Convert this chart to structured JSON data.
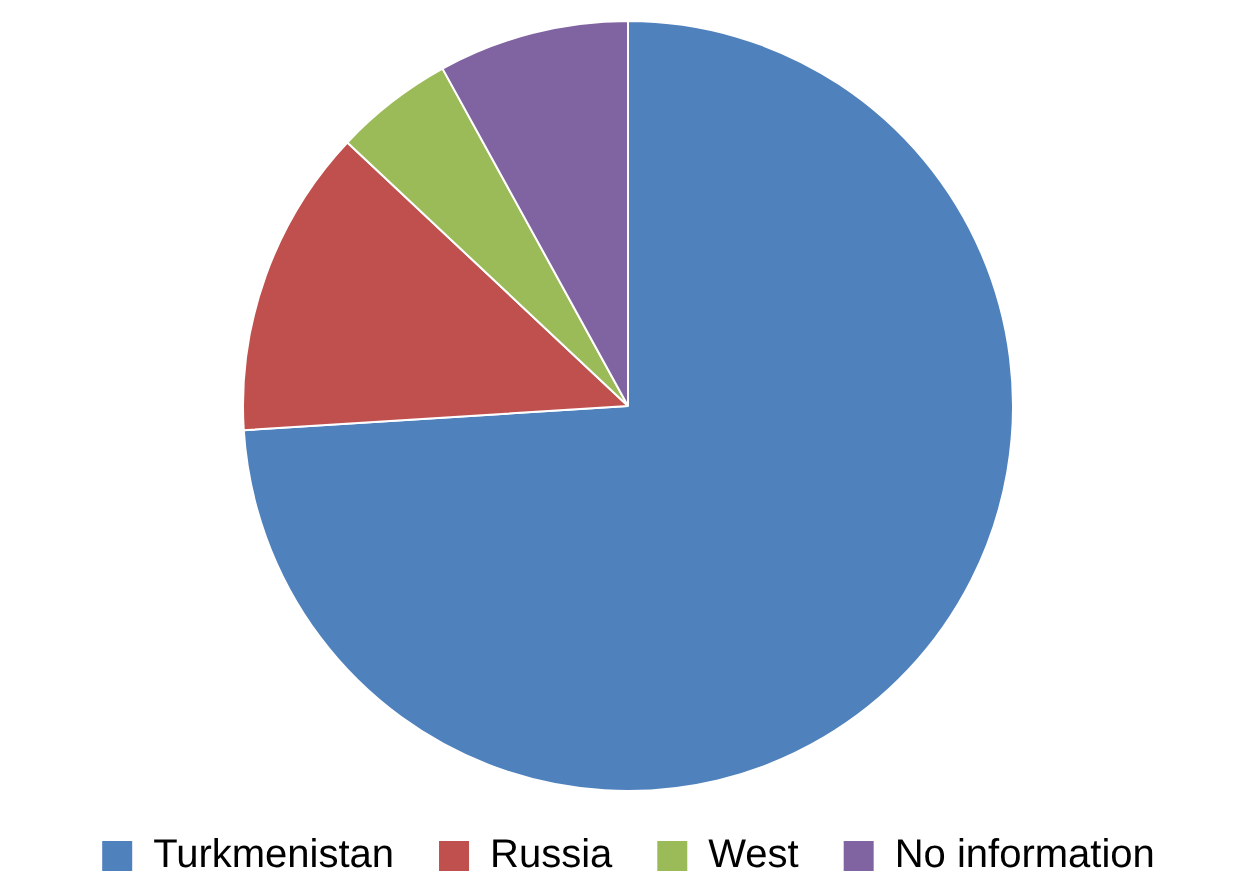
{
  "chart_data": {
    "type": "pie",
    "categories": [
      "Turkmenistan",
      "Russia",
      "West",
      "No information"
    ],
    "values": [
      74,
      13,
      5,
      8
    ],
    "colors": [
      "#4f81bd",
      "#c0504d",
      "#9bbb59",
      "#8064a2"
    ],
    "legend": "bottom"
  }
}
